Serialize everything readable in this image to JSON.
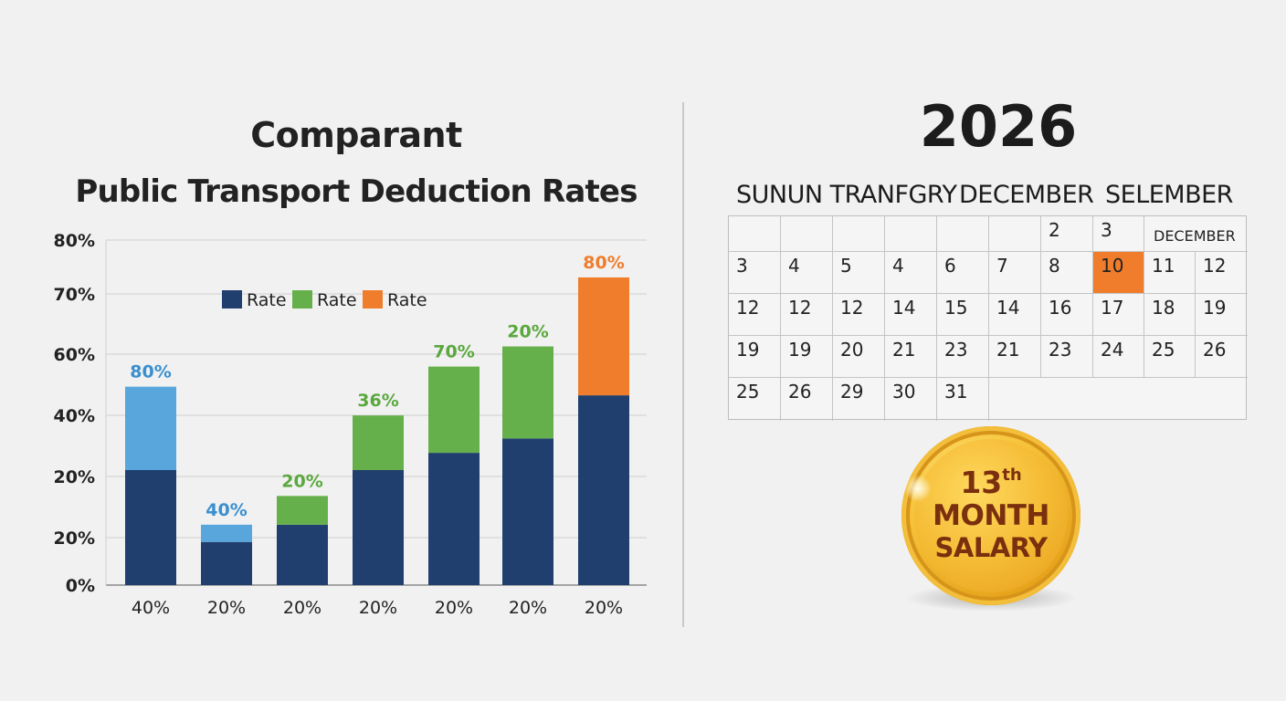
{
  "chart_data": {
    "type": "bar",
    "stacked": true,
    "title": "Comparant",
    "subtitle": "Public Transport Deduction Rates",
    "y_ticks": [
      "80%",
      "70%",
      "60%",
      "40%",
      "20%",
      "20%",
      "0%"
    ],
    "ylim": [
      0,
      6
    ],
    "grid": true,
    "legend": {
      "placement": "top-center",
      "entries": [
        {
          "label": "Rate",
          "color": "#213f6e"
        },
        {
          "label": "Rate",
          "color": "#66b04b"
        },
        {
          "label": "Rate",
          "color": "#ef7d2c"
        }
      ]
    },
    "categories": [
      "40%",
      "20%",
      "20%",
      "20%",
      "20%",
      "20%",
      "20%"
    ],
    "series": [
      {
        "color": "#213f6e",
        "values": [
          2.0,
          0.75,
          1.05,
          2.0,
          2.3,
          2.55,
          3.3
        ]
      },
      {
        "color": "#58a6dc",
        "values": [
          1.45,
          0.3,
          0,
          0,
          0,
          0,
          0
        ]
      },
      {
        "color": "#66b04b",
        "values": [
          0,
          0,
          0.5,
          0.95,
          1.5,
          1.6,
          0
        ]
      },
      {
        "color": "#ef7d2c",
        "values": [
          0,
          0,
          0,
          0,
          0,
          0,
          2.05
        ]
      }
    ],
    "data_labels": [
      {
        "text": "80%",
        "color": "#3a8fcf"
      },
      {
        "text": "40%",
        "color": "#3a8fcf"
      },
      {
        "text": "20%",
        "color": "#5aa83e"
      },
      {
        "text": "36%",
        "color": "#5aa83e"
      },
      {
        "text": "70%",
        "color": "#5aa83e"
      },
      {
        "text": "20%",
        "color": "#5aa83e"
      },
      {
        "text": "80%",
        "color": "#ef7d2c"
      }
    ]
  },
  "calendar": {
    "year": "2026",
    "month_headers": [
      "SUNUN TRANFGRY",
      "DECEMBER",
      "SELEMBER"
    ],
    "rows": [
      [
        "",
        "",
        "",
        "",
        "",
        "",
        "2",
        "3",
        "DECEMBER",
        ""
      ],
      [
        "3",
        "4",
        "5",
        "4",
        "6",
        "7",
        "8",
        "10",
        "11",
        "12"
      ],
      [
        "12",
        "12",
        "12",
        "14",
        "15",
        "14",
        "16",
        "17",
        "18",
        "19"
      ],
      [
        "19",
        "19",
        "20",
        "21",
        "23",
        "21",
        "23",
        "24",
        "25",
        "26"
      ],
      [
        "25",
        "26",
        "29",
        "30",
        "31",
        "",
        "",
        "",
        "",
        ""
      ]
    ],
    "highlight_color": "#ef7d2c"
  },
  "badge": {
    "number": "13",
    "suffix": "th",
    "line1": "MONTH",
    "line2": "SALARY"
  }
}
